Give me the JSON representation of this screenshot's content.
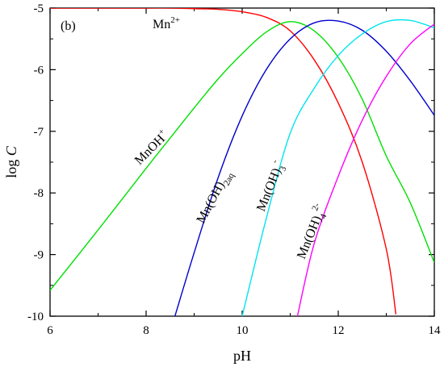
{
  "chart_data": {
    "type": "line",
    "title": "",
    "panel_label": "(b)",
    "xlabel": "pH",
    "ylabel": {
      "base": "log ",
      "italic": "C"
    },
    "xlim": [
      6,
      14
    ],
    "ylim": [
      -10,
      -5
    ],
    "xticks": [
      6,
      8,
      10,
      12,
      14
    ],
    "yticks": [
      -5,
      -6,
      -7,
      -8,
      -9,
      -10
    ],
    "xtick_labels": [
      "6",
      "8",
      "10",
      "12",
      "14"
    ],
    "ytick_labels": [
      "-5",
      "-6",
      "-7",
      "-8",
      "-9",
      "-10"
    ],
    "minor_ticks": true,
    "legend": "none",
    "grid": false,
    "colors": {
      "Mn2+": "#ff0000",
      "MnOH+": "#00e000",
      "Mn(OH)2aq": "#0000cc",
      "Mn(OH)3-": "#00e5ee",
      "Mn(OH)42-": "#ff00ff"
    },
    "series": [
      {
        "name": "Mn2+",
        "label": {
          "base": "Mn",
          "sup": "2+"
        },
        "color": "#ff0000",
        "x": [
          6.0,
          7.0,
          8.0,
          8.5,
          9.0,
          9.5,
          10.0,
          10.5,
          11.0,
          11.5,
          12.0,
          12.5,
          13.0,
          13.2
        ],
        "y": [
          -5.0,
          -5.0,
          -5.0,
          -5.0,
          -5.01,
          -5.02,
          -5.06,
          -5.15,
          -5.37,
          -5.84,
          -6.54,
          -7.5,
          -8.91,
          -9.97
        ]
      },
      {
        "name": "MnOH+",
        "label": {
          "base": "MnOH",
          "sup": "+"
        },
        "color": "#00e000",
        "x": [
          6.0,
          7.0,
          8.0,
          8.5,
          9.0,
          9.5,
          10.0,
          10.5,
          11.0,
          11.5,
          12.0,
          12.5,
          13.0,
          13.5,
          14.0
        ],
        "y": [
          -9.58,
          -8.6,
          -7.6,
          -7.11,
          -6.62,
          -6.15,
          -5.74,
          -5.39,
          -5.22,
          -5.37,
          -5.8,
          -6.48,
          -7.4,
          -8.16,
          -9.13
        ]
      },
      {
        "name": "Mn(OH)2aq",
        "label": {
          "base": "Mn(OH)",
          "sub": "2aq"
        },
        "color": "#0000cc",
        "x": [
          8.6,
          9.0,
          9.5,
          10.0,
          10.5,
          11.0,
          11.5,
          12.0,
          12.5,
          13.0,
          13.5,
          14.0
        ],
        "y": [
          -10.0,
          -8.97,
          -7.75,
          -6.75,
          -6.0,
          -5.5,
          -5.24,
          -5.21,
          -5.36,
          -5.7,
          -6.18,
          -6.74
        ]
      },
      {
        "name": "Mn(OH)3-",
        "label": {
          "base": "Mn(OH)",
          "sub": "3",
          "sup": "-"
        },
        "color": "#00e5ee",
        "x": [
          10.0,
          10.5,
          11.0,
          11.5,
          12.0,
          12.5,
          13.0,
          13.5,
          14.0
        ],
        "y": [
          -10.0,
          -8.42,
          -7.03,
          -6.3,
          -5.77,
          -5.42,
          -5.22,
          -5.2,
          -5.32
        ]
      },
      {
        "name": "Mn(OH)42-",
        "label": {
          "base": "Mn(OH)",
          "sub": "4",
          "sup": "2-"
        },
        "color": "#ff00ff",
        "x": [
          11.15,
          11.5,
          12.0,
          12.5,
          13.0,
          13.5,
          14.0
        ],
        "y": [
          -10.0,
          -8.82,
          -7.73,
          -6.82,
          -6.11,
          -5.58,
          -5.26
        ]
      }
    ]
  }
}
